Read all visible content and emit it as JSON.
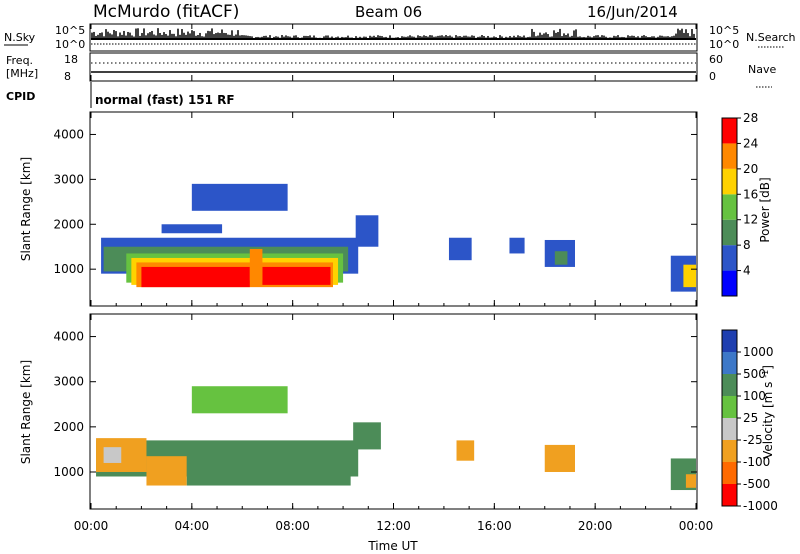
{
  "header": {
    "station": "McMurdo (fitACF)",
    "beam": "Beam 06",
    "date": "16/Jun/2014"
  },
  "status_panel": {
    "nsky_label": "N.Sky",
    "nsearch_label": "N.Search",
    "noise_ticks": [
      "10^5",
      "10^0"
    ],
    "freq_label_line1": "Freq.",
    "freq_label_line2": "[MHz]",
    "freq_ticks": [
      "18",
      "8"
    ],
    "nave_label": "Nave",
    "nave_ticks": [
      "60",
      "0"
    ],
    "cpid_label": "CPID",
    "cpid_text": "normal (fast) 151 RF"
  },
  "chart_data": [
    {
      "type": "heatmap",
      "name": "power",
      "ylabel": "Slant Range [km]",
      "xlabel": "",
      "xlim": [
        "00:00",
        "24:00"
      ],
      "ylim": [
        180,
        4500
      ],
      "yticks": [
        1000,
        2000,
        3000,
        4000
      ],
      "colorbar_label": "Power [dB]",
      "colorbar_ticks": [
        "4",
        "8",
        "12",
        "16",
        "20",
        "24",
        "28"
      ],
      "colorbar_colors": [
        "#0000ff",
        "#2c55c8",
        "#4c8c58",
        "#66c240",
        "#ffd200",
        "#ff8800",
        "#ff0000"
      ],
      "regions": [
        {
          "t0": 0.4,
          "t1": 10.6,
          "r0": 900,
          "r1": 1700,
          "c": "#2c55c8"
        },
        {
          "t0": 0.5,
          "t1": 10.2,
          "r0": 950,
          "r1": 1500,
          "c": "#4c8c58"
        },
        {
          "t0": 1.4,
          "t1": 10.0,
          "r0": 700,
          "r1": 1350,
          "c": "#66c240"
        },
        {
          "t0": 1.6,
          "t1": 9.8,
          "r0": 650,
          "r1": 1250,
          "c": "#ffd200"
        },
        {
          "t0": 1.8,
          "t1": 9.6,
          "r0": 600,
          "r1": 1150,
          "c": "#ff8800"
        },
        {
          "t0": 2.0,
          "t1": 6.3,
          "r0": 600,
          "r1": 1050,
          "c": "#ff0000"
        },
        {
          "t0": 6.8,
          "t1": 9.5,
          "r0": 650,
          "r1": 1050,
          "c": "#ff0000"
        },
        {
          "t0": 6.3,
          "t1": 6.8,
          "r0": 750,
          "r1": 1450,
          "c": "#ff8800"
        },
        {
          "t0": 10.5,
          "t1": 11.4,
          "r0": 1500,
          "r1": 2200,
          "c": "#2c55c8"
        },
        {
          "t0": 4.0,
          "t1": 7.8,
          "r0": 2300,
          "r1": 2900,
          "c": "#2c55c8"
        },
        {
          "t0": 2.8,
          "t1": 5.2,
          "r0": 1800,
          "r1": 2000,
          "c": "#2c55c8"
        },
        {
          "t0": 18.0,
          "t1": 19.2,
          "r0": 1050,
          "r1": 1650,
          "c": "#2c55c8"
        },
        {
          "t0": 18.4,
          "t1": 18.9,
          "r0": 1100,
          "r1": 1400,
          "c": "#4c8c58"
        },
        {
          "t0": 14.2,
          "t1": 15.1,
          "r0": 1200,
          "r1": 1700,
          "c": "#2c55c8"
        },
        {
          "t0": 16.6,
          "t1": 17.2,
          "r0": 1350,
          "r1": 1700,
          "c": "#2c55c8"
        },
        {
          "t0": 23.0,
          "t1": 24.0,
          "r0": 500,
          "r1": 1300,
          "c": "#2c55c8"
        },
        {
          "t0": 23.5,
          "t1": 24.0,
          "r0": 600,
          "r1": 1100,
          "c": "#ffd200"
        }
      ]
    },
    {
      "type": "heatmap",
      "name": "velocity",
      "ylabel": "Slant Range [km]",
      "xlabel": "Time UT",
      "xlim": [
        "00:00",
        "24:00"
      ],
      "ylim": [
        180,
        4500
      ],
      "yticks": [
        1000,
        2000,
        3000,
        4000
      ],
      "xticks": [
        "00:00",
        "04:00",
        "08:00",
        "12:00",
        "16:00",
        "20:00",
        "00:00"
      ],
      "colorbar_label": "Velocity [m s^-1]",
      "colorbar_ticks": [
        "1000",
        "500",
        "100",
        "25",
        "-25",
        "-100",
        "-500",
        "-1000"
      ],
      "colorbar_colors": [
        "#1f3fb0",
        "#3d78c8",
        "#4c8c58",
        "#66c240",
        "#c8c8c8",
        "#f0a020",
        "#ff6a00",
        "#ff0000"
      ],
      "regions": [
        {
          "t0": 0.2,
          "t1": 10.6,
          "r0": 900,
          "r1": 1700,
          "c": "#4c8c58"
        },
        {
          "t0": 0.2,
          "t1": 2.2,
          "r0": 1000,
          "r1": 1750,
          "c": "#f0a020"
        },
        {
          "t0": 0.5,
          "t1": 1.2,
          "r0": 1200,
          "r1": 1550,
          "c": "#c8c8c8"
        },
        {
          "t0": 2.2,
          "t1": 3.8,
          "r0": 700,
          "r1": 1350,
          "c": "#f0a020"
        },
        {
          "t0": 3.8,
          "t1": 10.3,
          "r0": 700,
          "r1": 1400,
          "c": "#4c8c58"
        },
        {
          "t0": 4.0,
          "t1": 7.8,
          "r0": 2300,
          "r1": 2900,
          "c": "#66c240"
        },
        {
          "t0": 10.4,
          "t1": 11.5,
          "r0": 1500,
          "r1": 2100,
          "c": "#4c8c58"
        },
        {
          "t0": 18.0,
          "t1": 19.2,
          "r0": 1000,
          "r1": 1600,
          "c": "#f0a020"
        },
        {
          "t0": 14.5,
          "t1": 15.2,
          "r0": 1250,
          "r1": 1700,
          "c": "#f0a020"
        },
        {
          "t0": 23.0,
          "t1": 24.0,
          "r0": 600,
          "r1": 1300,
          "c": "#4c8c58"
        },
        {
          "t0": 23.6,
          "t1": 24.0,
          "r0": 650,
          "r1": 950,
          "c": "#f0a020"
        }
      ]
    }
  ]
}
